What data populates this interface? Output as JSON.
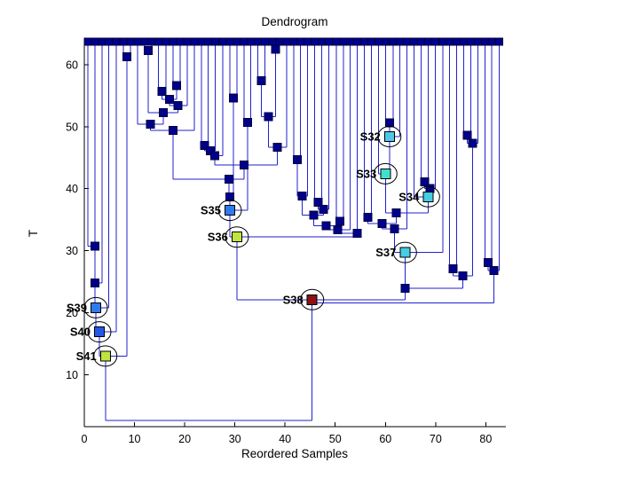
{
  "title": "Dendrogram",
  "xlabel": "Reordered Samples",
  "ylabel": "T",
  "chart_data": {
    "type": "dendrogram",
    "title": "Dendrogram",
    "xlabel": "Reordered Samples",
    "ylabel": "T",
    "x_range": [
      0,
      84
    ],
    "y_range": [
      1.6,
      64
    ],
    "x_ticks": [
      0,
      10,
      20,
      30,
      40,
      50,
      60,
      70,
      80
    ],
    "y_ticks": [
      10,
      20,
      30,
      40,
      50,
      60
    ],
    "grid": false,
    "line_color": "#2121CE",
    "marker_color": "#00008B",
    "marker_edge_color": "#000040",
    "label_color": "#D40000",
    "leaf_top_t": 63.7,
    "leaves": [
      0.7,
      2.1,
      3.5,
      4.9,
      6.4,
      7.8,
      9.2,
      10.6,
      12.0,
      13.4,
      14.8,
      16.3,
      17.7,
      19.1,
      20.5,
      21.9,
      23.3,
      24.7,
      26.1,
      27.6,
      29.0,
      30.4,
      31.8,
      33.2,
      34.6,
      36.0,
      37.4,
      38.9,
      40.3,
      41.7,
      43.1,
      44.5,
      45.9,
      47.3,
      48.7,
      50.2,
      51.6,
      53.0,
      54.4,
      55.8,
      57.2,
      58.6,
      60.0,
      61.5,
      62.9,
      64.3,
      65.7,
      67.1,
      68.5,
      69.9,
      71.4,
      72.8,
      74.2,
      75.6,
      77.0,
      78.4,
      79.8,
      81.2,
      82.7
    ],
    "merges": [
      {
        "id": "m1",
        "a": "L5",
        "b": "L6",
        "t": 61.3,
        "x": 8.5
      },
      {
        "id": "m2",
        "a": "L8",
        "b": "L9",
        "t": 62.3,
        "x": 12.7
      },
      {
        "id": "m3",
        "a": "L26",
        "b": "L27",
        "t": 62.5,
        "x": 38.1
      },
      {
        "id": "m4",
        "a": "L12",
        "b": "L13",
        "t": 56.6,
        "x": 18.4
      },
      {
        "id": "m5",
        "a": "L10",
        "b": "L11",
        "t": 55.7,
        "x": 15.5
      },
      {
        "id": "m6",
        "a": "m5",
        "b": "m4",
        "t": 54.4,
        "x": 17.0
      },
      {
        "id": "m7",
        "a": "m6",
        "b": "L14",
        "t": 53.4,
        "x": 18.7
      },
      {
        "id": "m8",
        "a": "m2",
        "b": "m7",
        "t": 52.3,
        "x": 15.7
      },
      {
        "id": "m9",
        "a": "L7",
        "b": "m8",
        "t": 50.4,
        "x": 13.2
      },
      {
        "id": "m10",
        "a": "m9",
        "b": "L15",
        "t": 49.4,
        "x": 17.7
      },
      {
        "id": "m11",
        "a": "L24",
        "b": "L25",
        "t": 57.4,
        "x": 35.3
      },
      {
        "id": "m12",
        "a": "m11",
        "b": "m3",
        "t": 51.6,
        "x": 36.7
      },
      {
        "id": "m13",
        "a": "L20",
        "b": "L21",
        "t": 54.6,
        "x": 29.7
      },
      {
        "id": "m14",
        "a": "L22",
        "b": "L23",
        "t": 50.7,
        "x": 32.5
      },
      {
        "id": "m15",
        "a": "m12",
        "b": "L28",
        "t": 46.7,
        "x": 38.5
      },
      {
        "id": "m16",
        "a": "L16",
        "b": "L17",
        "t": 47.0,
        "x": 24.0
      },
      {
        "id": "m17",
        "a": "m16",
        "b": "L18",
        "t": 46.1,
        "x": 25.1
      },
      {
        "id": "m18",
        "a": "m17",
        "b": "L19",
        "t": 45.3,
        "x": 26.0
      },
      {
        "id": "m19",
        "a": "m18",
        "b": "m15",
        "t": 43.8,
        "x": 31.8
      },
      {
        "id": "m20",
        "a": "m10",
        "b": "m19",
        "t": 41.5,
        "x": 28.8
      },
      {
        "id": "m21",
        "a": "m20",
        "b": "m13",
        "t": 38.7,
        "x": 29.0
      },
      {
        "id": "m22",
        "a": "m21",
        "b": "m14",
        "t": 36.5,
        "x": 29.0,
        "label": "S35",
        "color": "#2E7BF0"
      },
      {
        "id": "m23",
        "a": "L29",
        "b": "L30",
        "t": 44.7,
        "x": 42.4
      },
      {
        "id": "m24",
        "a": "m23",
        "b": "L31",
        "t": 38.8,
        "x": 43.4
      },
      {
        "id": "m25",
        "a": "L32",
        "b": "L33",
        "t": 37.8,
        "x": 46.6
      },
      {
        "id": "m26",
        "a": "m25",
        "b": "L34",
        "t": 36.7,
        "x": 47.7
      },
      {
        "id": "m27",
        "a": "m24",
        "b": "m26",
        "t": 35.7,
        "x": 45.7
      },
      {
        "id": "m28",
        "a": "L35",
        "b": "L36",
        "t": 34.7,
        "x": 50.9
      },
      {
        "id": "m29",
        "a": "m27",
        "b": "m28",
        "t": 34.0,
        "x": 48.2
      },
      {
        "id": "m30",
        "a": "m29",
        "b": "L37",
        "t": 33.4,
        "x": 50.5
      },
      {
        "id": "m31",
        "a": "m30",
        "b": "L38",
        "t": 32.8,
        "x": 54.4
      },
      {
        "id": "m32",
        "a": "m22",
        "b": "m31",
        "t": 32.2,
        "x": 30.4,
        "label": "S36",
        "color": "#BFE53C"
      },
      {
        "id": "m33",
        "a": "L42",
        "b": "L43",
        "t": 50.6,
        "x": 60.8
      },
      {
        "id": "m34",
        "a": "m33",
        "b": "L44",
        "t": 48.4,
        "x": 60.8,
        "label": "S32",
        "color": "#4FC8E8"
      },
      {
        "id": "m35",
        "a": "L41",
        "b": "m34",
        "t": 42.4,
        "x": 60.0,
        "label": "S33",
        "color": "#40E0CC"
      },
      {
        "id": "m36",
        "a": "L47",
        "b": "L48",
        "t": 41.1,
        "x": 67.8
      },
      {
        "id": "m37",
        "a": "m36",
        "b": "L49",
        "t": 40.0,
        "x": 68.9
      },
      {
        "id": "m38",
        "a": "L46",
        "b": "m37",
        "t": 38.7,
        "x": 68.5,
        "label": "S34",
        "color": "#45CDE2"
      },
      {
        "id": "m39",
        "a": "m35",
        "b": "m38",
        "t": 36.1,
        "x": 62.2
      },
      {
        "id": "m40",
        "a": "L39",
        "b": "L40",
        "t": 35.4,
        "x": 56.5
      },
      {
        "id": "m41",
        "a": "m40",
        "b": "m39",
        "t": 34.4,
        "x": 59.3
      },
      {
        "id": "m42",
        "a": "m41",
        "b": "L45",
        "t": 33.5,
        "x": 61.8
      },
      {
        "id": "m43",
        "a": "m42",
        "b": "L50",
        "t": 29.7,
        "x": 63.9,
        "label": "S37",
        "color": "#45CDE2"
      },
      {
        "id": "m44",
        "a": "L53",
        "b": "L54",
        "t": 48.6,
        "x": 76.3
      },
      {
        "id": "m45",
        "a": "m44",
        "b": "L55",
        "t": 47.3,
        "x": 77.4
      },
      {
        "id": "m46",
        "a": "L51",
        "b": "L52",
        "t": 27.1,
        "x": 73.5
      },
      {
        "id": "m47",
        "a": "m46",
        "b": "m45",
        "t": 25.9,
        "x": 75.4
      },
      {
        "id": "m48",
        "a": "m43",
        "b": "m47",
        "t": 23.9,
        "x": 63.9
      },
      {
        "id": "m49",
        "a": "L56",
        "b": "L57",
        "t": 28.1,
        "x": 80.5
      },
      {
        "id": "m50",
        "a": "m49",
        "b": "L58",
        "t": 26.8,
        "x": 81.6
      },
      {
        "id": "m51",
        "a": "m32",
        "b": "m48",
        "t": 22.1,
        "x": 45.4,
        "label": "S38",
        "color": "#8B1212"
      },
      {
        "id": "m52",
        "a": "m51",
        "b": "m50",
        "t": 21.6,
        "x": 45.4,
        "marker": false
      },
      {
        "id": "m53",
        "a": "L0",
        "b": "L1",
        "t": 30.7,
        "x": 2.1
      },
      {
        "id": "m54",
        "a": "m53",
        "b": "L2",
        "t": 24.8,
        "x": 2.1
      },
      {
        "id": "m55",
        "a": "m54",
        "b": "L3",
        "t": 20.8,
        "x": 2.3,
        "label": "S39",
        "color": "#2E7BF0"
      },
      {
        "id": "m56",
        "a": "m55",
        "b": "L4",
        "t": 16.9,
        "x": 3.0,
        "label": "S40",
        "color": "#2457E6"
      },
      {
        "id": "m57",
        "a": "m56",
        "b": "m1",
        "t": 13.0,
        "x": 4.2,
        "label": "S41",
        "color": "#BFE53C"
      },
      {
        "id": "m58",
        "a": "m57",
        "b": "m52",
        "t": 2.6,
        "x": 45.4,
        "marker": false
      }
    ]
  }
}
